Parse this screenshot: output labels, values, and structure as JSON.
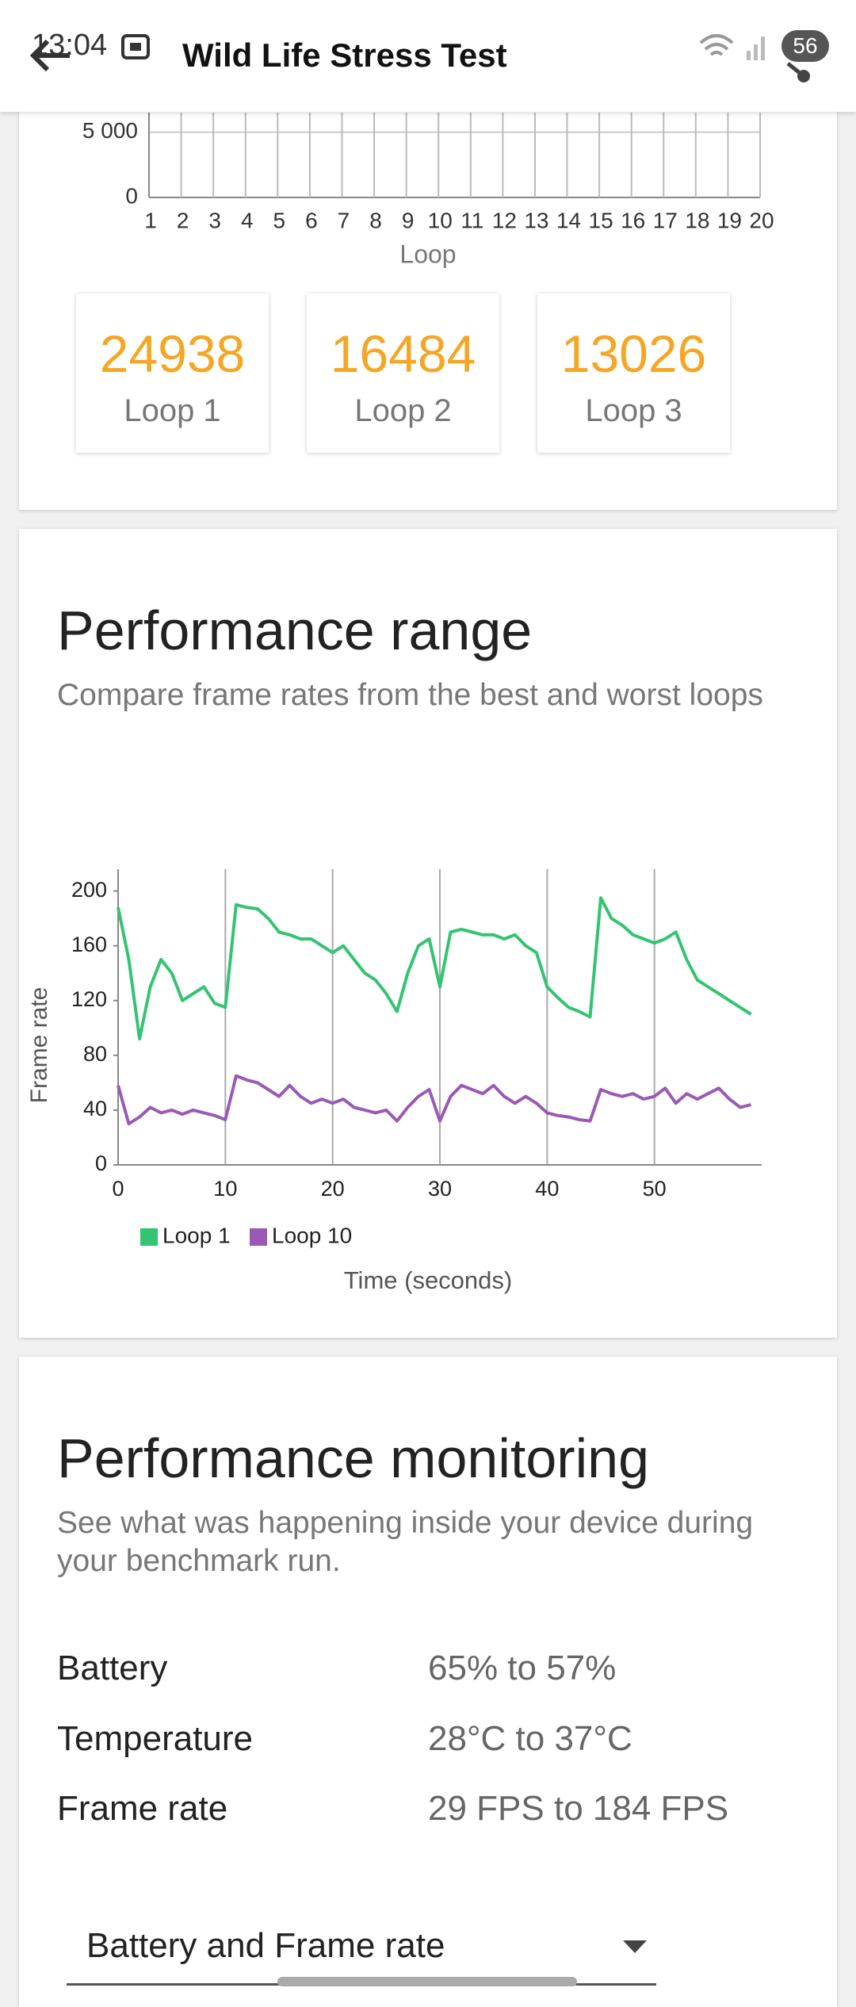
{
  "status_bar": {
    "time": "13:04",
    "battery": "56"
  },
  "app_bar": {
    "title": "Wild Life Stress Test"
  },
  "chart_data": [
    {
      "type": "bar",
      "x_label": "Loop",
      "categories": [
        "1",
        "2",
        "3",
        "4",
        "5",
        "6",
        "7",
        "8",
        "9",
        "10",
        "11",
        "12",
        "13",
        "14",
        "15",
        "16",
        "17",
        "18",
        "19",
        "20"
      ],
      "ylim": [
        0,
        6500
      ],
      "yticks": [
        0,
        {
          "value": 5000,
          "label": "5 000"
        }
      ],
      "grid": true
    },
    {
      "type": "line",
      "x_label": "Time (seconds)",
      "y_label": "Frame rate",
      "x": [
        0,
        1,
        2,
        3,
        4,
        5,
        6,
        7,
        8,
        9,
        10,
        11,
        12,
        13,
        14,
        15,
        16,
        17,
        18,
        19,
        20,
        21,
        22,
        23,
        24,
        25,
        26,
        27,
        28,
        29,
        30,
        31,
        32,
        33,
        34,
        35,
        36,
        37,
        38,
        39,
        40,
        41,
        42,
        43,
        44,
        45,
        46,
        47,
        48,
        49,
        50,
        51,
        52,
        53,
        54,
        55,
        56,
        57,
        58,
        59
      ],
      "xlim": [
        0,
        60
      ],
      "xticks": [
        0,
        10,
        20,
        30,
        40,
        50
      ],
      "ylim": [
        0,
        216
      ],
      "yticks": [
        0,
        40,
        80,
        120,
        160,
        200
      ],
      "grid": "x",
      "legend": "bottom-left",
      "series": [
        {
          "name": "Loop 1",
          "color": "#33c472",
          "values": [
            188,
            150,
            92,
            130,
            150,
            140,
            120,
            125,
            130,
            118,
            115,
            190,
            188,
            187,
            180,
            170,
            168,
            165,
            165,
            160,
            155,
            160,
            150,
            140,
            135,
            125,
            112,
            140,
            160,
            165,
            130,
            170,
            172,
            170,
            168,
            168,
            165,
            168,
            160,
            155,
            130,
            122,
            115,
            112,
            108,
            195,
            180,
            175,
            168,
            165,
            162,
            165,
            170,
            150,
            135,
            130,
            125,
            120,
            115,
            110
          ]
        },
        {
          "name": "Loop 10",
          "color": "#9b59b6",
          "values": [
            58,
            30,
            35,
            42,
            38,
            40,
            37,
            40,
            38,
            36,
            33,
            65,
            62,
            60,
            55,
            50,
            58,
            50,
            45,
            48,
            45,
            48,
            42,
            40,
            38,
            40,
            32,
            42,
            50,
            55,
            32,
            50,
            58,
            55,
            52,
            58,
            50,
            45,
            50,
            45,
            38,
            36,
            35,
            33,
            32,
            55,
            52,
            50,
            52,
            48,
            50,
            56,
            45,
            52,
            48,
            52,
            56,
            48,
            42,
            44
          ]
        }
      ]
    }
  ],
  "loop_scores": [
    {
      "score": "24938",
      "label": "Loop 1"
    },
    {
      "score": "16484",
      "label": "Loop 2"
    },
    {
      "score": "13026",
      "label": "Loop 3"
    }
  ],
  "performance_range": {
    "title": "Performance range",
    "subtitle": "Compare frame rates from the best and worst loops"
  },
  "performance_monitoring": {
    "title": "Performance monitoring",
    "subtitle": "See what was happening inside your device during your benchmark run.",
    "rows": [
      [
        "Battery",
        "65% to 57%"
      ],
      [
        "Temperature",
        "28°C to 37°C"
      ],
      [
        "Frame rate",
        "29 FPS to 184 FPS"
      ]
    ],
    "dropdown": "Battery and Frame rate"
  }
}
